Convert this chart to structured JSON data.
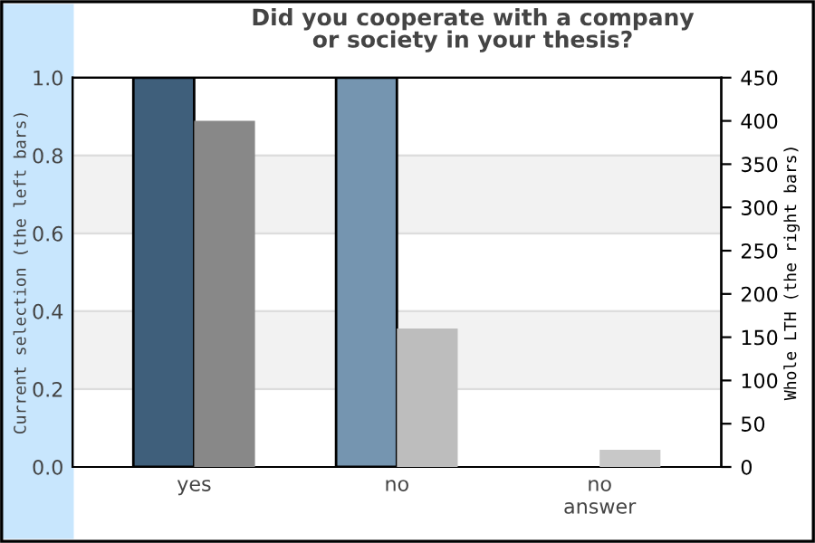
{
  "chart_data": {
    "type": "bar",
    "title": "Did you cooperate with a company\nor society in your thesis?",
    "categories": [
      "yes",
      "no",
      "no\nanswer"
    ],
    "series": [
      {
        "colors": [
          "#3f5f7b",
          "#7595b0",
          "#7595b0"
        ],
        "values": [
          1.0,
          1.0,
          null
        ]
      },
      {
        "colors": [
          "#888888",
          "#bdbdbd",
          "#c8c8c8"
        ],
        "values": [
          400,
          160,
          20
        ],
        "axis": "y2"
      }
    ],
    "ylabel": "Current selection (the left bars)",
    "y2label": "Whole LTH (the right bars)",
    "ylim": [
      0,
      1.0
    ],
    "yticks": [
      {
        "value": 0,
        "label": "0.0"
      },
      0.2,
      0.4,
      0.6,
      0.8,
      {
        "value": 1.0,
        "label": "1.0"
      }
    ],
    "y2lim": [
      0,
      450
    ],
    "y2ticks": [
      0,
      50,
      100,
      150,
      200,
      250,
      300,
      350,
      400,
      450
    ],
    "bands": [
      {
        "axis": "y",
        "from": 0.2,
        "to": 0.4,
        "color": "#f2f2f2"
      },
      {
        "axis": "y",
        "from": 0.6,
        "to": 0.8,
        "color": "#f2f2f2"
      }
    ],
    "grid": "y",
    "legend": false
  }
}
